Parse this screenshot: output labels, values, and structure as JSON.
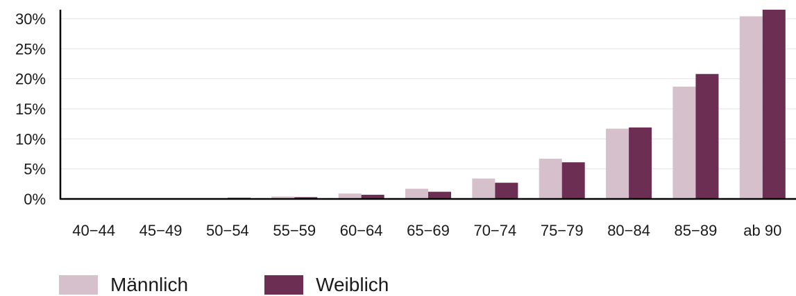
{
  "chart_data": {
    "type": "bar",
    "categories": [
      "40−44",
      "45−49",
      "50−54",
      "55−59",
      "60−64",
      "65−69",
      "70−74",
      "75−79",
      "80−84",
      "85−89",
      "ab 90"
    ],
    "series": [
      {
        "name": "Männlich",
        "color": "#d5c0cc",
        "values": [
          0.0,
          0.0,
          0.1,
          0.4,
          0.9,
          1.7,
          3.4,
          6.7,
          11.7,
          18.7,
          30.4
        ]
      },
      {
        "name": "Weiblich",
        "color": "#6d2e53",
        "values": [
          0.0,
          0.0,
          0.2,
          0.3,
          0.7,
          1.2,
          2.7,
          6.1,
          11.9,
          20.8,
          31.5
        ]
      }
    ],
    "ylim": [
      0,
      31.5
    ],
    "yticks": [
      {
        "value": 0,
        "label": "0%"
      },
      {
        "value": 5,
        "label": "5%"
      },
      {
        "value": 10,
        "label": "10%"
      },
      {
        "value": 15,
        "label": "15%"
      },
      {
        "value": 20,
        "label": "20%"
      },
      {
        "value": 25,
        "label": "25%"
      },
      {
        "value": 30,
        "label": "30%"
      }
    ],
    "grid": true,
    "legend_position": "bottom-left",
    "title": "",
    "xlabel": "",
    "ylabel": ""
  },
  "legend": {
    "items": [
      {
        "label": "Männlich",
        "color": "#d5c0cc"
      },
      {
        "label": "Weiblich",
        "color": "#6d2e53"
      }
    ]
  }
}
